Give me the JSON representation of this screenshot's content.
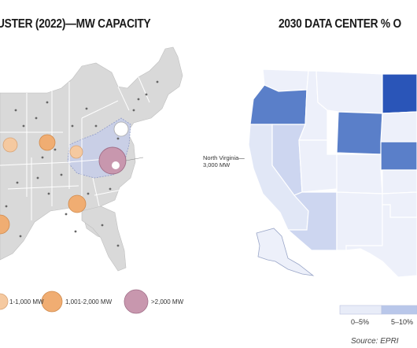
{
  "left_panel": {
    "title": "USTER (2022)—MW CAPACITY",
    "callout_line1": "North Virginia—",
    "callout_line2": "3,000 MW",
    "legend": [
      {
        "label": "1-1,000 MW",
        "color": "#f5c9a0"
      },
      {
        "label": "1,001-2,000 MW",
        "color": "#f0ad72"
      },
      {
        "label": ">2,000 MW",
        "color": "#c897ae"
      }
    ],
    "colors": {
      "land": "#d9d9d9",
      "border": "#ffffff",
      "highlight": "#c9cfe6"
    }
  },
  "right_panel": {
    "title": "2030 DATA CENTER % O",
    "scale": [
      {
        "label": "0–5%",
        "color": "#e8ecf8"
      },
      {
        "label": "5–10%",
        "color": "#b9c7ea"
      }
    ],
    "colors": {
      "very_light": "#edf0fa",
      "light": "#cdd6f0",
      "mid": "#a9b9e3",
      "strong": "#5a7fc9",
      "darkest": "#2a55b8"
    },
    "source": "Source: EPRI"
  }
}
